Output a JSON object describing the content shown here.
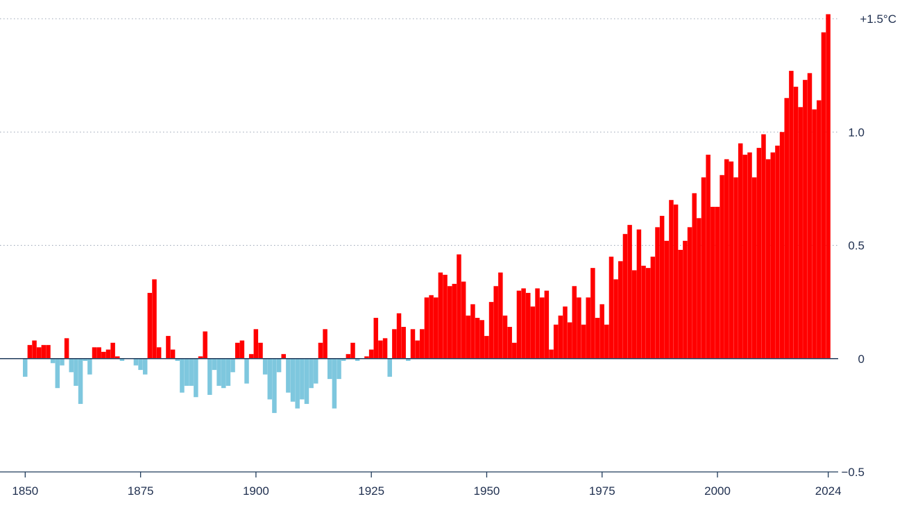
{
  "chart_data": {
    "type": "bar",
    "title": "",
    "xlabel": "",
    "ylabel": "",
    "ylim": [
      -0.5,
      1.5
    ],
    "grid": true,
    "colors": {
      "positive": "#ff0000",
      "negative": "#7ec7de",
      "axis": "#1f3a5a",
      "text": "#1f2f4f"
    },
    "x_ticks": [
      {
        "value": 1850,
        "label": "1850"
      },
      {
        "value": 1875,
        "label": "1875"
      },
      {
        "value": 1900,
        "label": "1900"
      },
      {
        "value": 1925,
        "label": "1925"
      },
      {
        "value": 1950,
        "label": "1950"
      },
      {
        "value": 1975,
        "label": "1975"
      },
      {
        "value": 2000,
        "label": "2000"
      },
      {
        "value": 2024,
        "label": "2024"
      }
    ],
    "y_ticks": [
      {
        "value": 1.5,
        "label": "+1.5°C"
      },
      {
        "value": 1.0,
        "label": "1.0"
      },
      {
        "value": 0.5,
        "label": "0.5"
      },
      {
        "value": 0,
        "label": "0"
      },
      {
        "value": -0.5,
        "label": "−0.5"
      }
    ],
    "x": [
      1850,
      1851,
      1852,
      1853,
      1854,
      1855,
      1856,
      1857,
      1858,
      1859,
      1860,
      1861,
      1862,
      1863,
      1864,
      1865,
      1866,
      1867,
      1868,
      1869,
      1870,
      1871,
      1872,
      1873,
      1874,
      1875,
      1876,
      1877,
      1878,
      1879,
      1880,
      1881,
      1882,
      1883,
      1884,
      1885,
      1886,
      1887,
      1888,
      1889,
      1890,
      1891,
      1892,
      1893,
      1894,
      1895,
      1896,
      1897,
      1898,
      1899,
      1900,
      1901,
      1902,
      1903,
      1904,
      1905,
      1906,
      1907,
      1908,
      1909,
      1910,
      1911,
      1912,
      1913,
      1914,
      1915,
      1916,
      1917,
      1918,
      1919,
      1920,
      1921,
      1922,
      1923,
      1924,
      1925,
      1926,
      1927,
      1928,
      1929,
      1930,
      1931,
      1932,
      1933,
      1934,
      1935,
      1936,
      1937,
      1938,
      1939,
      1940,
      1941,
      1942,
      1943,
      1944,
      1945,
      1946,
      1947,
      1948,
      1949,
      1950,
      1951,
      1952,
      1953,
      1954,
      1955,
      1956,
      1957,
      1958,
      1959,
      1960,
      1961,
      1962,
      1963,
      1964,
      1965,
      1966,
      1967,
      1968,
      1969,
      1970,
      1971,
      1972,
      1973,
      1974,
      1975,
      1976,
      1977,
      1978,
      1979,
      1980,
      1981,
      1982,
      1983,
      1984,
      1985,
      1986,
      1987,
      1988,
      1989,
      1990,
      1991,
      1992,
      1993,
      1994,
      1995,
      1996,
      1997,
      1998,
      1999,
      2000,
      2001,
      2002,
      2003,
      2004,
      2005,
      2006,
      2007,
      2008,
      2009,
      2010,
      2011,
      2012,
      2013,
      2014,
      2015,
      2016,
      2017,
      2018,
      2019,
      2020,
      2021,
      2022,
      2023,
      2024
    ],
    "values": [
      -0.08,
      0.06,
      0.08,
      0.05,
      0.06,
      0.06,
      -0.02,
      -0.13,
      -0.03,
      0.09,
      -0.06,
      -0.12,
      -0.2,
      -0.01,
      -0.07,
      0.05,
      0.05,
      0.03,
      0.04,
      0.07,
      0.01,
      -0.01,
      0.0,
      0.0,
      -0.03,
      -0.05,
      -0.07,
      0.29,
      0.35,
      0.05,
      0.0,
      0.1,
      0.04,
      -0.01,
      -0.15,
      -0.12,
      -0.12,
      -0.17,
      0.01,
      0.12,
      -0.16,
      -0.05,
      -0.12,
      -0.13,
      -0.12,
      -0.06,
      0.07,
      0.08,
      -0.11,
      0.02,
      0.13,
      0.07,
      -0.07,
      -0.18,
      -0.24,
      -0.06,
      0.02,
      -0.15,
      -0.19,
      -0.22,
      -0.18,
      -0.2,
      -0.13,
      -0.11,
      0.07,
      0.13,
      -0.09,
      -0.22,
      -0.09,
      -0.01,
      0.02,
      0.07,
      -0.01,
      0.0,
      0.01,
      0.04,
      0.18,
      0.08,
      0.09,
      -0.08,
      0.13,
      0.2,
      0.14,
      -0.01,
      0.13,
      0.08,
      0.13,
      0.27,
      0.28,
      0.27,
      0.38,
      0.37,
      0.32,
      0.33,
      0.46,
      0.34,
      0.19,
      0.24,
      0.18,
      0.17,
      0.1,
      0.25,
      0.32,
      0.38,
      0.19,
      0.14,
      0.07,
      0.3,
      0.31,
      0.29,
      0.23,
      0.31,
      0.27,
      0.3,
      0.04,
      0.15,
      0.19,
      0.23,
      0.16,
      0.32,
      0.27,
      0.15,
      0.27,
      0.4,
      0.18,
      0.24,
      0.15,
      0.45,
      0.35,
      0.43,
      0.55,
      0.59,
      0.39,
      0.57,
      0.41,
      0.4,
      0.45,
      0.58,
      0.63,
      0.52,
      0.7,
      0.68,
      0.48,
      0.52,
      0.58,
      0.73,
      0.62,
      0.8,
      0.9,
      0.67,
      0.67,
      0.81,
      0.88,
      0.87,
      0.8,
      0.95,
      0.9,
      0.91,
      0.8,
      0.93,
      0.99,
      0.88,
      0.91,
      0.94,
      1.0,
      1.15,
      1.27,
      1.2,
      1.11,
      1.23,
      1.26,
      1.1,
      1.14,
      1.44,
      1.52
    ]
  }
}
